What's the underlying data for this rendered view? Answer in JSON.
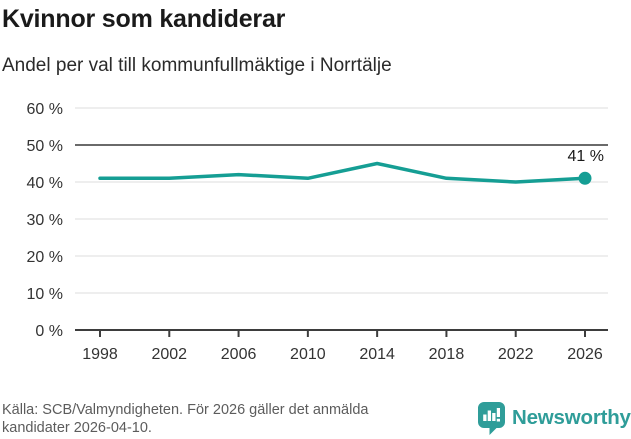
{
  "header": {
    "title": "Kvinnor som kandiderar",
    "subtitle": "Andel per val till kommunfullmäktige i Norrtälje"
  },
  "chart_data": {
    "type": "line",
    "categories": [
      "1998",
      "2002",
      "2006",
      "2010",
      "2014",
      "2018",
      "2022",
      "2026"
    ],
    "values": [
      41,
      41,
      42,
      41,
      45,
      41,
      40,
      41
    ],
    "title": "Kvinnor som kandiderar",
    "subtitle": "Andel per val till kommunfullmäktige i Norrtälje",
    "xlabel": "",
    "ylabel": "",
    "ylim": [
      0,
      60
    ],
    "ytick_step": 10,
    "ytick_suffix": " %",
    "grid": true,
    "reference_line": 50,
    "end_label": "41 %",
    "legend": "none",
    "line_color": "#159e94",
    "grid_color": "#e4e4e4",
    "reference_line_color": "#6a6a6a",
    "axis_color": "#3d3d3d"
  },
  "footer": {
    "source_lines": [
      "Källa: SCB/Valmyndigheten. För 2026 gäller det anmälda",
      "kandidater 2026-04-10."
    ],
    "brand": "Newsworthy",
    "brand_color": "#2f9d99"
  }
}
